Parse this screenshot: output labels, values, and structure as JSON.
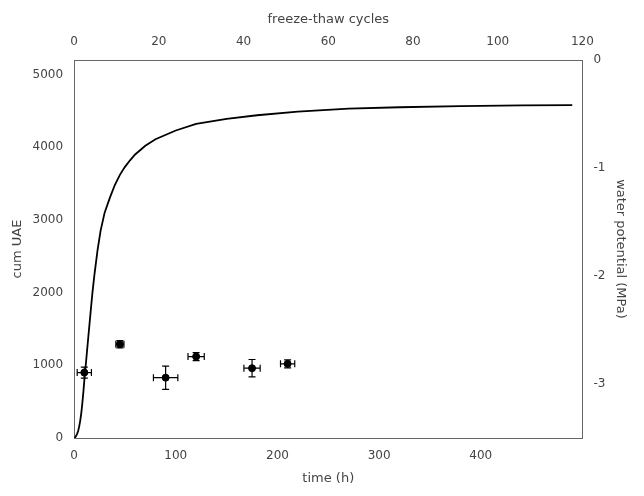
{
  "chart_data": {
    "type": "line",
    "xlabel": "time (h)",
    "ylabel": "cum UAE",
    "y2label": "water potential (MPa)",
    "x2label": "freeze-thaw cycles",
    "xlim": [
      0,
      500
    ],
    "xticks": [
      0,
      100,
      200,
      300,
      400
    ],
    "x2lim": [
      0,
      120
    ],
    "x2ticks": [
      0,
      20,
      40,
      60,
      80,
      100,
      120
    ],
    "ylim": [
      0,
      5200
    ],
    "yticks": [
      0,
      1000,
      2000,
      3000,
      4000,
      5000
    ],
    "y2lim": [
      -3.5,
      0
    ],
    "y2ticks": [
      0,
      -1,
      -2,
      -3
    ],
    "grid": false,
    "series": [
      {
        "type": "line",
        "color": "#000000",
        "line_style": "solid",
        "x": [
          0,
          1,
          2,
          3,
          4,
          5,
          6,
          7,
          8,
          9,
          10,
          12,
          14,
          16,
          18,
          20,
          23,
          26,
          30,
          35,
          40,
          45,
          50,
          55,
          60,
          70,
          80,
          100,
          120,
          150,
          180,
          220,
          270,
          320,
          380,
          440,
          490
        ],
        "values": [
          0,
          10,
          30,
          60,
          100,
          160,
          240,
          340,
          470,
          620,
          790,
          1090,
          1400,
          1700,
          2000,
          2250,
          2580,
          2850,
          3100,
          3300,
          3480,
          3620,
          3730,
          3820,
          3900,
          4020,
          4110,
          4230,
          4320,
          4390,
          4440,
          4490,
          4530,
          4550,
          4565,
          4575,
          4580
        ]
      },
      {
        "type": "scatter",
        "color": "#000000",
        "marker": "circle",
        "x": [
          10,
          45,
          90,
          120,
          175,
          210
        ],
        "values": [
          900,
          1290,
          830,
          1120,
          960,
          1020
        ],
        "xerr": [
          7,
          4,
          12,
          8,
          8,
          7
        ],
        "yerr": [
          75,
          50,
          160,
          55,
          120,
          55
        ]
      }
    ]
  }
}
